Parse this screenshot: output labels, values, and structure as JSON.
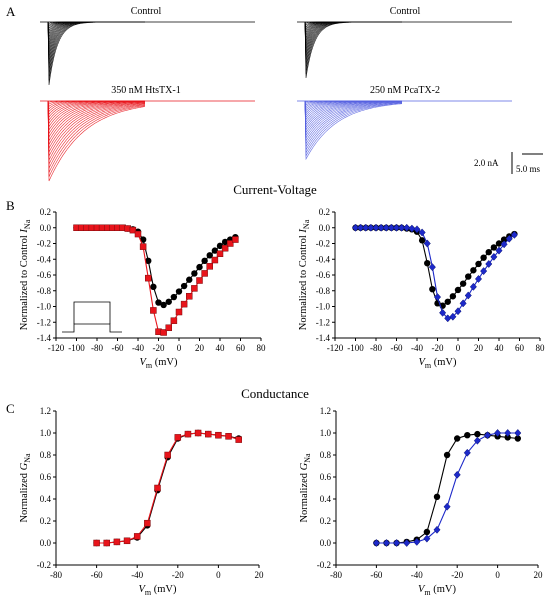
{
  "panel_letters": [
    "A",
    "B",
    "C"
  ],
  "traces": {
    "control_left": "Control",
    "control_right": "Control",
    "drug_left": "350 nM HtsTX-1",
    "drug_right": "250 nM PcaTX-2",
    "scale_current": "2.0 nA",
    "scale_time": "5.0 ms"
  },
  "section_titles": {
    "iv": "Current-Voltage",
    "conductance": "Conductance"
  },
  "colors": {
    "control": "#000000",
    "htstx1": "#e8141b",
    "pcatx2": "#1d29c9",
    "pcatx2_trace": "#5560e0"
  },
  "chart_data": [
    {
      "type": "line",
      "panel": "B-left",
      "xlabel": "Vm (mV)",
      "ylabel": "Normalized to Control INa",
      "xlim": [
        -120,
        80
      ],
      "ylim": [
        -1.4,
        0.2
      ],
      "xticks": [
        -120,
        -100,
        -80,
        -60,
        -40,
        -20,
        0,
        20,
        40,
        60,
        80
      ],
      "yticks": [
        0.2,
        0.0,
        -0.2,
        -0.4,
        -0.6,
        -0.8,
        -1.0,
        -1.2,
        -1.4
      ],
      "x": [
        -100,
        -95,
        -90,
        -85,
        -80,
        -75,
        -70,
        -65,
        -60,
        -55,
        -50,
        -45,
        -40,
        -35,
        -30,
        -25,
        -20,
        -15,
        -10,
        -5,
        0,
        5,
        10,
        15,
        20,
        25,
        30,
        35,
        40,
        45,
        50,
        55
      ],
      "series": [
        {
          "values": [
            0,
            0,
            0,
            0,
            0,
            0,
            0,
            0,
            0,
            0,
            -0.01,
            -0.02,
            -0.05,
            -0.15,
            -0.42,
            -0.75,
            -0.95,
            -0.98,
            -0.94,
            -0.88,
            -0.81,
            -0.74,
            -0.66,
            -0.58,
            -0.5,
            -0.42,
            -0.35,
            -0.29,
            -0.23,
            -0.18,
            -0.15,
            -0.12
          ]
        },
        {
          "values": [
            0,
            0,
            0,
            0,
            0,
            0,
            0,
            0,
            0,
            0,
            -0.01,
            -0.03,
            -0.08,
            -0.24,
            -0.64,
            -1.05,
            -1.32,
            -1.33,
            -1.27,
            -1.18,
            -1.07,
            -0.97,
            -0.87,
            -0.77,
            -0.67,
            -0.58,
            -0.49,
            -0.41,
            -0.33,
            -0.26,
            -0.2,
            -0.15
          ]
        }
      ],
      "error_bars": [
        0.06,
        0.07,
        0.05
      ]
    },
    {
      "type": "line",
      "panel": "B-right",
      "xlabel": "Vm (mV)",
      "ylabel": "Normalized to Control INa",
      "xlim": [
        -120,
        80
      ],
      "ylim": [
        -1.4,
        0.2
      ],
      "xticks": [
        -120,
        -100,
        -80,
        -60,
        -40,
        -20,
        0,
        20,
        40,
        60,
        80
      ],
      "yticks": [
        0.2,
        0.0,
        -0.2,
        -0.4,
        -0.6,
        -0.8,
        -1.0,
        -1.2,
        -1.4
      ],
      "x": [
        -100,
        -95,
        -90,
        -85,
        -80,
        -75,
        -70,
        -65,
        -60,
        -55,
        -50,
        -45,
        -40,
        -35,
        -30,
        -25,
        -20,
        -15,
        -10,
        -5,
        0,
        5,
        10,
        15,
        20,
        25,
        30,
        35,
        40,
        45,
        50,
        55
      ],
      "series": [
        {
          "values": [
            0,
            0,
            0,
            0,
            0,
            0,
            0,
            0,
            0,
            0,
            -0.01,
            -0.02,
            -0.05,
            -0.16,
            -0.45,
            -0.78,
            -0.96,
            -0.99,
            -0.94,
            -0.87,
            -0.79,
            -0.71,
            -0.62,
            -0.54,
            -0.46,
            -0.38,
            -0.31,
            -0.25,
            -0.2,
            -0.15,
            -0.11,
            -0.08
          ]
        },
        {
          "values": [
            0,
            0,
            0,
            0,
            0,
            0,
            0,
            0,
            0,
            0,
            0,
            -0.01,
            -0.02,
            -0.06,
            -0.2,
            -0.5,
            -0.88,
            -1.08,
            -1.15,
            -1.13,
            -1.06,
            -0.96,
            -0.86,
            -0.75,
            -0.65,
            -0.55,
            -0.46,
            -0.37,
            -0.29,
            -0.21,
            -0.14,
            -0.09
          ]
        }
      ]
    },
    {
      "type": "line",
      "panel": "C-left",
      "xlabel": "Vm (mV)",
      "ylabel": "Normalized GNa",
      "xlim": [
        -80,
        20
      ],
      "ylim": [
        -0.2,
        1.2
      ],
      "xticks": [
        -80,
        -60,
        -40,
        -20,
        0,
        20
      ],
      "yticks": [
        1.2,
        1.0,
        0.8,
        0.6,
        0.4,
        0.2,
        0.0,
        -0.2
      ],
      "x": [
        -60,
        -55,
        -50,
        -45,
        -40,
        -35,
        -30,
        -25,
        -20,
        -15,
        -10,
        -5,
        0,
        5,
        10
      ],
      "series": [
        {
          "values": [
            0.0,
            0.0,
            0.01,
            0.02,
            0.05,
            0.16,
            0.48,
            0.78,
            0.95,
            0.99,
            1.0,
            0.99,
            0.98,
            0.97,
            0.95
          ]
        },
        {
          "values": [
            0.0,
            0.0,
            0.01,
            0.02,
            0.06,
            0.18,
            0.5,
            0.8,
            0.96,
            0.99,
            1.0,
            0.99,
            0.98,
            0.97,
            0.94
          ]
        }
      ]
    },
    {
      "type": "line",
      "panel": "C-right",
      "xlabel": "Vm (mV)",
      "ylabel": "Normalized GNa",
      "xlim": [
        -80,
        20
      ],
      "ylim": [
        -0.2,
        1.2
      ],
      "xticks": [
        -80,
        -60,
        -40,
        -20,
        0,
        20
      ],
      "yticks": [
        1.2,
        1.0,
        0.8,
        0.6,
        0.4,
        0.2,
        0.0,
        -0.2
      ],
      "x": [
        -60,
        -55,
        -50,
        -45,
        -40,
        -35,
        -30,
        -25,
        -20,
        -15,
        -10,
        -5,
        0,
        5,
        10
      ],
      "series": [
        {
          "values": [
            0.0,
            0.0,
            0.0,
            0.01,
            0.03,
            0.1,
            0.42,
            0.8,
            0.95,
            0.98,
            0.99,
            0.98,
            0.97,
            0.96,
            0.95
          ]
        },
        {
          "values": [
            0.0,
            0.0,
            0.0,
            0.0,
            0.01,
            0.04,
            0.12,
            0.33,
            0.62,
            0.82,
            0.93,
            0.98,
            1.0,
            1.0,
            1.0
          ]
        }
      ]
    }
  ]
}
